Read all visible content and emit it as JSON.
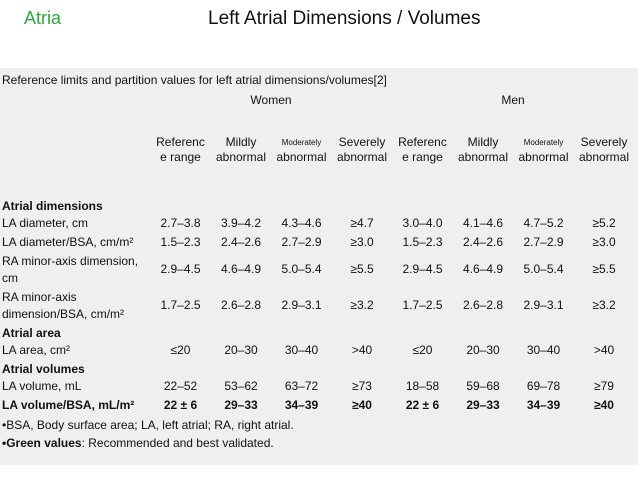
{
  "header": {
    "section": "Atria",
    "title": "Left Atrial Dimensions / Volumes"
  },
  "table": {
    "caption": "Reference limits and partition values for left atrial dimensions/volumes[2]",
    "groups": [
      "Women",
      "Men"
    ],
    "columns": [
      {
        "lines": [
          "Referenc",
          "e range"
        ]
      },
      {
        "lines": [
          "Mildly",
          "abnormal"
        ]
      },
      {
        "lines": [
          "Moderately",
          "abnormal"
        ]
      },
      {
        "lines": [
          "Severely",
          "abnormal"
        ]
      },
      {
        "lines": [
          "Referenc",
          "e range"
        ]
      },
      {
        "lines": [
          "Mildly",
          "abnormal"
        ]
      },
      {
        "lines": [
          "Moderately",
          "abnormal"
        ]
      },
      {
        "lines": [
          "Severely",
          "abnormal"
        ]
      }
    ],
    "sections": [
      {
        "title": "Atrial dimensions",
        "rows": [
          {
            "label": "LA diameter, cm",
            "values": [
              "2.7–3.8",
              "3.9–4.2",
              "4.3–4.6",
              "≥4.7",
              "3.0–4.0",
              "4.1–4.6",
              "4.7–5.2",
              "≥5.2"
            ]
          },
          {
            "label": "LA diameter/BSA, cm/m²",
            "values": [
              "1.5–2.3",
              "2.4–2.6",
              "2.7–2.9",
              "≥3.0",
              "1.5–2.3",
              "2.4–2.6",
              "2.7–2.9",
              "≥3.0"
            ]
          },
          {
            "label": "RA minor-axis dimension, cm",
            "values": [
              "2.9–4.5",
              "4.6–4.9",
              "5.0–5.4",
              "≥5.5",
              "2.9–4.5",
              "4.6–4.9",
              "5.0–5.4",
              "≥5.5"
            ]
          },
          {
            "label": "RA minor-axis dimension/BSA, cm/m²",
            "values": [
              "1.7–2.5",
              "2.6–2.8",
              "2.9–3.1",
              "≥3.2",
              "1.7–2.5",
              "2.6–2.8",
              "2.9–3.1",
              "≥3.2"
            ]
          }
        ]
      },
      {
        "title": "Atrial area",
        "rows": [
          {
            "label": "LA area, cm²",
            "values": [
              "≤20",
              "20–30",
              "30–40",
              ">40",
              "≤20",
              "20–30",
              "30–40",
              ">40"
            ]
          }
        ]
      },
      {
        "title": "Atrial volumes",
        "rows": [
          {
            "label": "LA volume, mL",
            "values": [
              "22–52",
              "53–62",
              "63–72",
              "≥73",
              "18–58",
              "59–68",
              "69–78",
              "≥79"
            ]
          },
          {
            "label": "LA volume/BSA, mL/m²",
            "values": [
              "22 ± 6",
              "29–33",
              "34–39",
              "≥40",
              "22 ± 6",
              "29–33",
              "34–39",
              "≥40"
            ],
            "bold": true
          }
        ]
      }
    ]
  },
  "footnotes": [
    {
      "text": "•BSA, Body surface area; LA, left atrial; RA, right atrial."
    },
    {
      "bold": "•Green values",
      "text": ": Recommended and best validated."
    }
  ]
}
